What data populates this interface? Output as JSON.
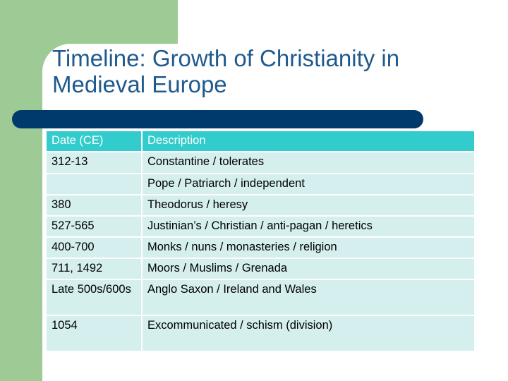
{
  "slide": {
    "title": "Timeline: Growth of Christianity in Medieval Europe",
    "colors": {
      "accent": "#9ecb95",
      "title_text": "#1f5a8c",
      "title_bar": "#003a6c",
      "header_fill": "#33cccc",
      "row_fill": "#d5eeee"
    }
  },
  "table": {
    "headers": [
      "Date (CE)",
      "Description"
    ],
    "rows": [
      {
        "date": "312-13",
        "description": "Constantine / tolerates"
      },
      {
        "date": "",
        "description": "Pope / Patriarch / independent"
      },
      {
        "date": "380",
        "description": "Theodorus / heresy"
      },
      {
        "date": "527-565",
        "description": "Justinian’s / Christian / anti-pagan / heretics"
      },
      {
        "date": "400-700",
        "description": "Monks / nuns / monasteries / religion"
      },
      {
        "date": "711, 1492",
        "description": "Moors / Muslims / Grenada"
      },
      {
        "date": "Late 500s/600s",
        "description": "Anglo Saxon / Ireland and Wales"
      },
      {
        "date": "1054",
        "description": "Excommunicated / schism (division)"
      }
    ]
  }
}
